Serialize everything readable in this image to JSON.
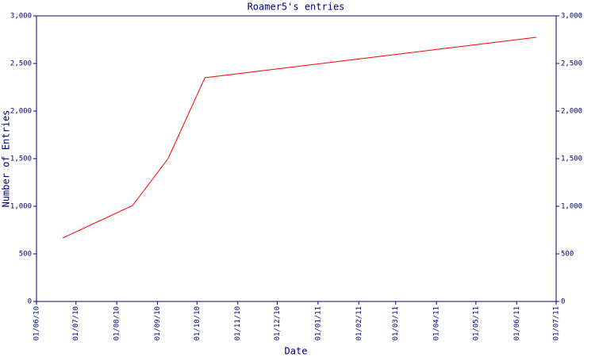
{
  "chart_data": {
    "type": "line",
    "title": "Roamer5's entries",
    "x_label": "Date",
    "y_label": "Number of Entries",
    "x": [
      "2010-06-21",
      "2010-08-13",
      "2010-09-09",
      "2010-10-07",
      "2011-06-16"
    ],
    "series": [
      {
        "name": "Roamer5",
        "color": "#ff0000",
        "values": [
          667,
          1008,
          1500,
          2350,
          2775
        ]
      }
    ],
    "xlim": [
      "2010-06-01",
      "2011-07-01"
    ],
    "xticks": [
      {
        "value": "2010-06-01",
        "label": "01/06/10"
      },
      {
        "value": "2010-07-01",
        "label": "01/07/10"
      },
      {
        "value": "2010-08-01",
        "label": "01/08/10"
      },
      {
        "value": "2010-09-01",
        "label": "01/09/10"
      },
      {
        "value": "2010-10-01",
        "label": "01/10/10"
      },
      {
        "value": "2010-11-01",
        "label": "01/11/10"
      },
      {
        "value": "2010-12-01",
        "label": "01/12/10"
      },
      {
        "value": "2011-01-01",
        "label": "01/01/11"
      },
      {
        "value": "2011-02-01",
        "label": "01/02/11"
      },
      {
        "value": "2011-03-01",
        "label": "01/03/11"
      },
      {
        "value": "2011-04-01",
        "label": "01/04/11"
      },
      {
        "value": "2011-05-01",
        "label": "01/05/11"
      },
      {
        "value": "2011-06-01",
        "label": "01/06/11"
      },
      {
        "value": "2011-07-01",
        "label": "01/07/11"
      }
    ],
    "ylim": [
      0,
      3000
    ],
    "yticks": [
      0,
      500,
      {
        "value": 1000,
        "label": "1,000"
      },
      {
        "value": 1500,
        "label": "1,500"
      },
      {
        "value": 2000,
        "label": "2,000"
      },
      {
        "value": 2500,
        "label": "2,500"
      },
      {
        "value": 3000,
        "label": "3,000"
      }
    ],
    "axis_color": "#000080"
  }
}
